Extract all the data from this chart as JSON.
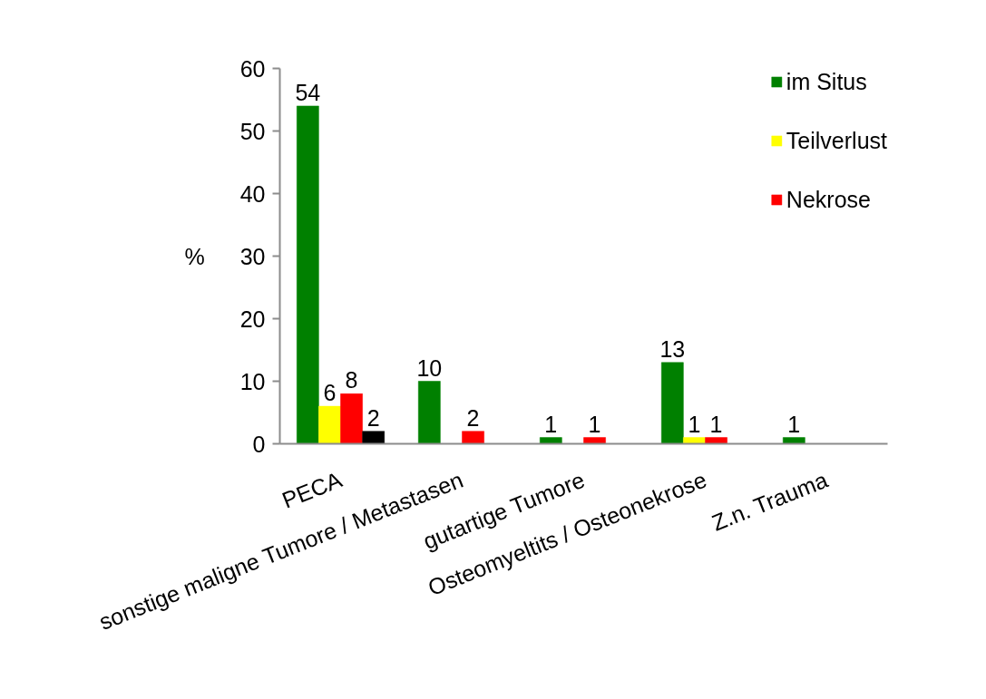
{
  "chart_data": {
    "type": "bar",
    "ylabel": "%",
    "categories": [
      "PECA",
      "sonstige maligne Tumore / Metastasen",
      "gutartige Tumore",
      "Osteomyeltits / Osteonekrose",
      "Z.n. Trauma"
    ],
    "series": [
      {
        "name": "im Situs",
        "color": "#008000",
        "values": [
          54,
          10,
          1,
          13,
          1
        ]
      },
      {
        "name": "Teilverlust",
        "color": "#ffff00",
        "values": [
          6,
          null,
          null,
          1,
          null
        ]
      },
      {
        "name": "Nekrose",
        "color": "#ff0000",
        "values": [
          8,
          2,
          1,
          1,
          null
        ]
      },
      {
        "color": "#000000",
        "values": [
          2,
          null,
          null,
          null,
          null
        ]
      }
    ],
    "ylim": [
      0,
      60
    ],
    "yticks": [
      0,
      10,
      20,
      30,
      40,
      50,
      60
    ],
    "data_labels": true,
    "legend": "top right"
  }
}
